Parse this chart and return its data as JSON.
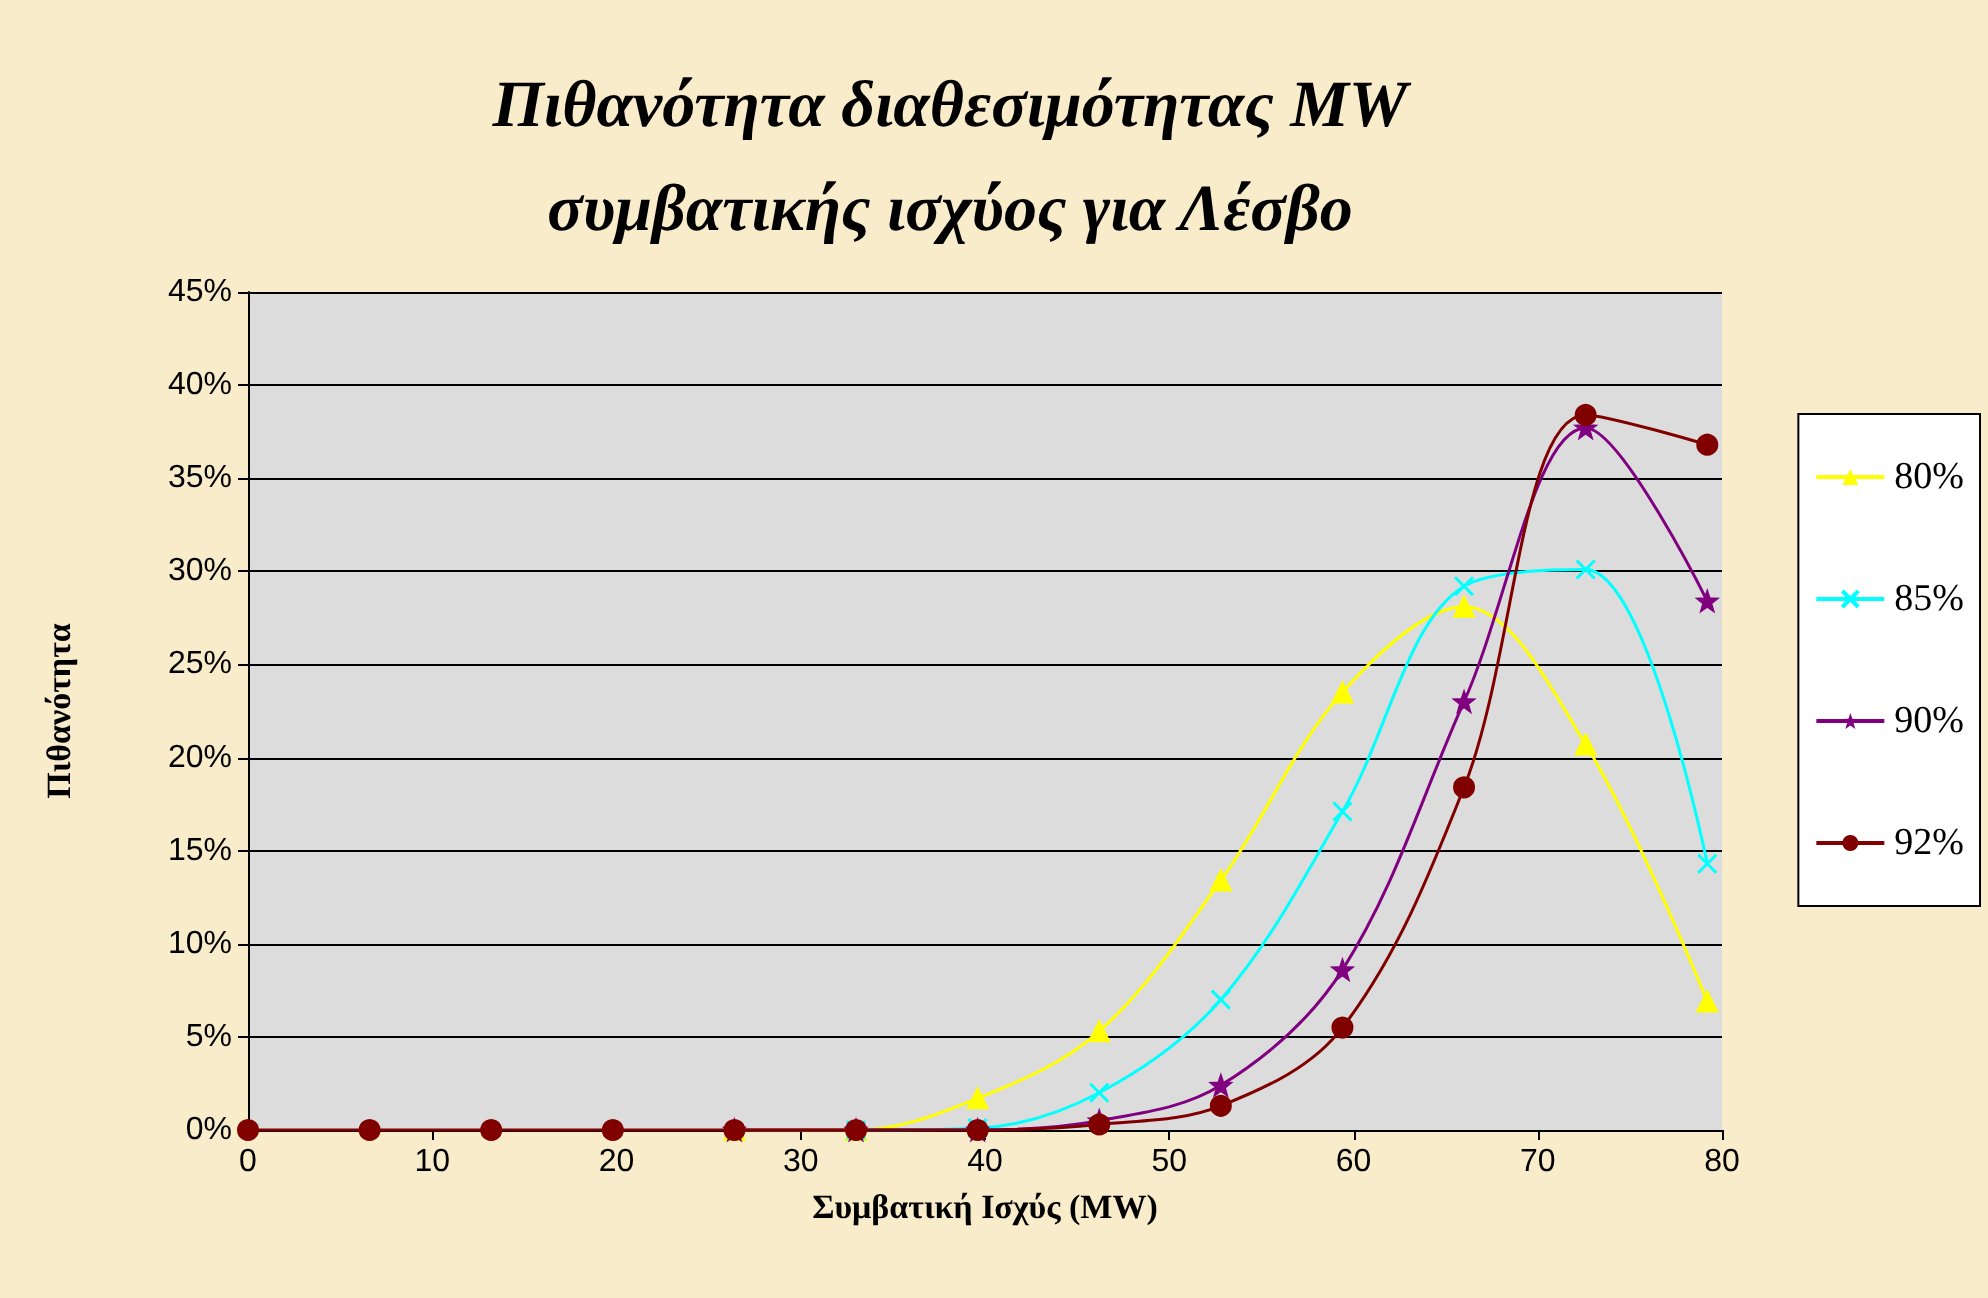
{
  "chart_data": {
    "type": "line",
    "title": "Πιθανότητα διαθεσιμότητας MW\nσυμβατικής ισχύος για Λέσβο",
    "xlabel": "Συμβατική Ισχύς (MW)",
    "ylabel": "Πιθανότητα",
    "x": [
      0,
      6.6,
      13.2,
      19.8,
      26.4,
      33,
      39.6,
      46.2,
      52.8,
      59.4,
      66,
      72.6,
      79.2
    ],
    "series": [
      {
        "name": "80%",
        "color": "#ffff00",
        "marker": "triangle",
        "values": [
          null,
          null,
          null,
          null,
          0,
          0,
          1.7,
          5.3,
          13.4,
          23.5,
          28.1,
          20.7,
          6.9
        ]
      },
      {
        "name": "85%",
        "color": "#00ffff",
        "marker": "cross",
        "values": [
          null,
          null,
          null,
          null,
          null,
          0,
          0.1,
          2.0,
          7.0,
          17.1,
          29.2,
          30.1,
          14.3
        ]
      },
      {
        "name": "90%",
        "color": "#800080",
        "marker": "star",
        "values": [
          null,
          null,
          null,
          null,
          0,
          0,
          0,
          0.5,
          2.4,
          8.6,
          23.0,
          37.7,
          28.4
        ]
      },
      {
        "name": "92%",
        "color": "#800000",
        "marker": "circle",
        "values": [
          0,
          0,
          0,
          0,
          0,
          0,
          0,
          0.3,
          1.3,
          5.5,
          18.4,
          38.4,
          36.8
        ]
      }
    ],
    "xlim": [
      0,
      80
    ],
    "xticks": [
      0,
      10,
      20,
      30,
      40,
      50,
      60,
      70,
      80
    ],
    "ylim": [
      0,
      45
    ],
    "yticks": [
      {
        "value": 0,
        "label": "0%"
      },
      {
        "value": 5,
        "label": "5%"
      },
      {
        "value": 10,
        "label": "10%"
      },
      {
        "value": 15,
        "label": "15%"
      },
      {
        "value": 20,
        "label": "20%"
      },
      {
        "value": 25,
        "label": "25%"
      },
      {
        "value": 30,
        "label": "30%"
      },
      {
        "value": 35,
        "label": "35%"
      },
      {
        "value": 40,
        "label": "40%"
      },
      {
        "value": 45,
        "label": "45%"
      }
    ],
    "grid": "y",
    "legend": "right",
    "line_style": "solid"
  }
}
